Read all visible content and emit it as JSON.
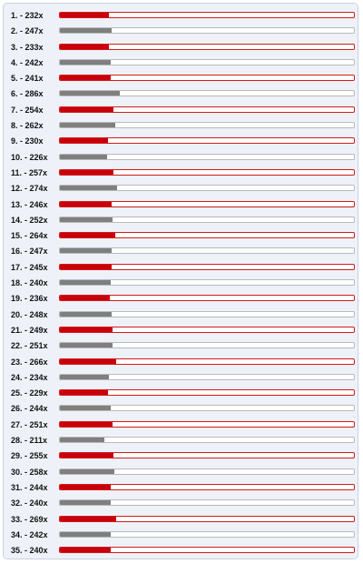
{
  "leaderboard": {
    "rows": [
      {
        "label": "1. - 232x",
        "value": 232,
        "color": "#c8000c"
      },
      {
        "label": "2. - 247x",
        "value": 247,
        "color": "#7f7f7f"
      },
      {
        "label": "3. - 233x",
        "value": 233,
        "color": "#c8000c"
      },
      {
        "label": "4. - 242x",
        "value": 242,
        "color": "#7f7f7f"
      },
      {
        "label": "5. - 241x",
        "value": 241,
        "color": "#c8000c"
      },
      {
        "label": "6. - 286x",
        "value": 286,
        "color": "#7f7f7f"
      },
      {
        "label": "7. - 254x",
        "value": 254,
        "color": "#c8000c"
      },
      {
        "label": "8. - 262x",
        "value": 262,
        "color": "#7f7f7f"
      },
      {
        "label": "9. - 230x",
        "value": 230,
        "color": "#c8000c"
      },
      {
        "label": "10. - 226x",
        "value": 226,
        "color": "#7f7f7f"
      },
      {
        "label": "11. - 257x",
        "value": 257,
        "color": "#c8000c"
      },
      {
        "label": "12. - 274x",
        "value": 274,
        "color": "#7f7f7f"
      },
      {
        "label": "13. - 246x",
        "value": 246,
        "color": "#c8000c"
      },
      {
        "label": "14. - 252x",
        "value": 252,
        "color": "#7f7f7f"
      },
      {
        "label": "15. - 264x",
        "value": 264,
        "color": "#c8000c"
      },
      {
        "label": "16. - 247x",
        "value": 247,
        "color": "#7f7f7f"
      },
      {
        "label": "17. - 245x",
        "value": 245,
        "color": "#c8000c"
      },
      {
        "label": "18. - 240x",
        "value": 240,
        "color": "#7f7f7f"
      },
      {
        "label": "19. - 236x",
        "value": 236,
        "color": "#c8000c"
      },
      {
        "label": "20. - 248x",
        "value": 248,
        "color": "#7f7f7f"
      },
      {
        "label": "21. - 249x",
        "value": 249,
        "color": "#c8000c"
      },
      {
        "label": "22. - 251x",
        "value": 251,
        "color": "#7f7f7f"
      },
      {
        "label": "23. - 266x",
        "value": 266,
        "color": "#c8000c"
      },
      {
        "label": "24. - 234x",
        "value": 234,
        "color": "#7f7f7f"
      },
      {
        "label": "25. - 229x",
        "value": 229,
        "color": "#c8000c"
      },
      {
        "label": "26. - 244x",
        "value": 244,
        "color": "#7f7f7f"
      },
      {
        "label": "27. - 251x",
        "value": 251,
        "color": "#c8000c"
      },
      {
        "label": "28. - 211x",
        "value": 211,
        "color": "#7f7f7f"
      },
      {
        "label": "29. - 255x",
        "value": 255,
        "color": "#c8000c"
      },
      {
        "label": "30. - 258x",
        "value": 258,
        "color": "#7f7f7f"
      },
      {
        "label": "31. - 244x",
        "value": 244,
        "color": "#c8000c"
      },
      {
        "label": "32. - 240x",
        "value": 240,
        "color": "#7f7f7f"
      },
      {
        "label": "33. - 269x",
        "value": 269,
        "color": "#c8000c"
      },
      {
        "label": "34. - 242x",
        "value": 242,
        "color": "#7f7f7f"
      },
      {
        "label": "35. - 240x",
        "value": 240,
        "color": "#c8000c"
      }
    ]
  }
}
